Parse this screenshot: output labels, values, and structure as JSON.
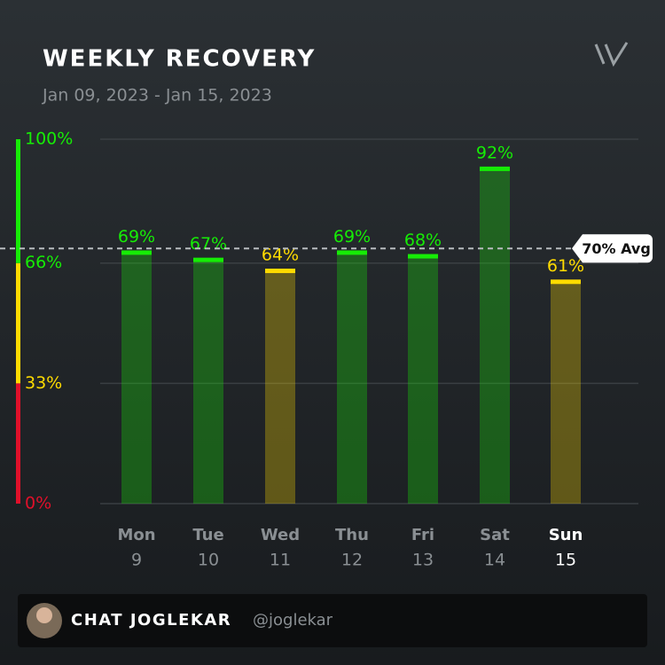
{
  "chart_data": {
    "type": "bar",
    "title": "WEEKLY RECOVERY",
    "subtitle": "Jan 09, 2023 - Jan 15, 2023",
    "categories": [
      "Mon",
      "Tue",
      "Wed",
      "Thu",
      "Fri",
      "Sat",
      "Sun"
    ],
    "category_sublabels": [
      "9",
      "10",
      "11",
      "12",
      "13",
      "14",
      "15"
    ],
    "highlight_index": 6,
    "values": [
      69,
      67,
      64,
      69,
      68,
      92,
      61
    ],
    "value_labels": [
      "69%",
      "67%",
      "64%",
      "69%",
      "68%",
      "92%",
      "61%"
    ],
    "ylim": [
      0,
      100
    ],
    "yticks": [
      {
        "value": 100,
        "label": "100%"
      },
      {
        "value": 66,
        "label": "66%"
      },
      {
        "value": 33,
        "label": "33%"
      },
      {
        "value": 0,
        "label": "0%"
      }
    ],
    "grid": true,
    "zones": [
      {
        "from": 0,
        "to": 33,
        "color": "#e0102a"
      },
      {
        "from": 33,
        "to": 66,
        "color": "#ffdb00"
      },
      {
        "from": 66,
        "to": 100,
        "color": "#16ec06"
      }
    ],
    "average": 70,
    "average_label": "70% Avg"
  },
  "footer": {
    "name": "CHAT JOGLEKAR",
    "handle": "@joglekar"
  }
}
